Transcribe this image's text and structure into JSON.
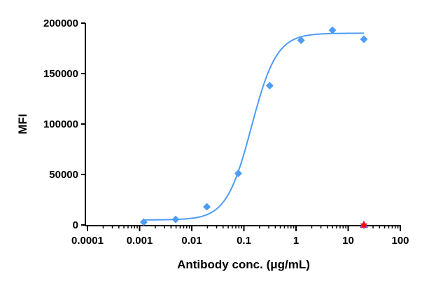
{
  "chart_data": {
    "type": "scatter",
    "title": "",
    "xlabel": "Antibody conc. (μg/mL)",
    "ylabel": "MFI",
    "xscale": "log",
    "xlim": [
      0.0001,
      100
    ],
    "ylim": [
      0,
      200000
    ],
    "xticks": [
      "0.0001",
      "0.001",
      "0.01",
      "0.1",
      "1",
      "10",
      "100"
    ],
    "yticks": [
      "0",
      "50000",
      "100000",
      "150000",
      "200000"
    ],
    "grid": false,
    "legend": "none",
    "series": [
      {
        "color": "#4d9cf7",
        "marker": "diamond",
        "fit": "sigmoidal curve",
        "x": [
          0.0012,
          0.0049,
          0.0195,
          0.078,
          0.3125,
          1.25,
          5,
          20
        ],
        "y": [
          2800,
          5500,
          18000,
          51000,
          138000,
          183000,
          193000,
          184000
        ]
      },
      {
        "color": "#ff0000",
        "marker": "star-on-triangle",
        "x": [
          20
        ],
        "y": [
          0
        ]
      }
    ]
  }
}
